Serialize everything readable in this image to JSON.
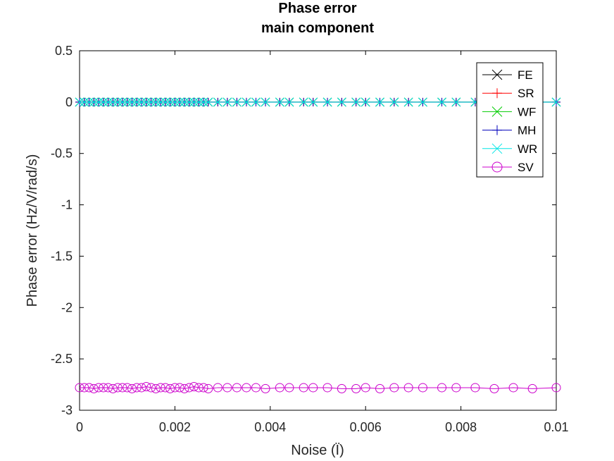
{
  "chart_data": {
    "type": "line",
    "title_lines": [
      "Phase error",
      "main component"
    ],
    "xlabel": "Noise (Ϊ)",
    "ylabel": "Phase error (Hz/V/rad/s)",
    "xlim": [
      0,
      0.01
    ],
    "ylim": [
      -3,
      0.5
    ],
    "x_ticks": [
      0,
      0.002,
      0.004,
      0.006,
      0.008,
      0.01
    ],
    "x_tick_labels": [
      "0",
      "0.002",
      "0.004",
      "0.006",
      "0.008",
      "0.01"
    ],
    "y_ticks": [
      0.5,
      0,
      -0.5,
      -1,
      -1.5,
      -2,
      -2.5,
      -3
    ],
    "y_tick_labels": [
      "0.5",
      "0",
      "-0.5",
      "-1",
      "-1.5",
      "-2",
      "-2.5",
      "-3"
    ],
    "grid": false,
    "legend_position": "top-right",
    "x": [
      0,
      0.0001,
      0.0002,
      0.0003,
      0.0004,
      0.0005,
      0.0006,
      0.0007,
      0.0008,
      0.0009,
      0.001,
      0.0011,
      0.0012,
      0.0013,
      0.0014,
      0.0015,
      0.0016,
      0.0017,
      0.0018,
      0.0019,
      0.002,
      0.0021,
      0.0022,
      0.0023,
      0.0024,
      0.0025,
      0.0026,
      0.0027,
      0.0029,
      0.0031,
      0.0033,
      0.0035,
      0.0037,
      0.0039,
      0.0042,
      0.0044,
      0.0047,
      0.0049,
      0.0052,
      0.0055,
      0.0058,
      0.006,
      0.0063,
      0.0066,
      0.0069,
      0.0072,
      0.0076,
      0.0079,
      0.0083,
      0.0087,
      0.0091,
      0.0095,
      0.01
    ],
    "series": [
      {
        "name": "FE",
        "color": "#000000",
        "marker": "x",
        "values": "zeros"
      },
      {
        "name": "SR",
        "color": "#ff0000",
        "marker": "+",
        "values": "zeros"
      },
      {
        "name": "WF",
        "color": "#00cc00",
        "marker": "x",
        "values": "zeros"
      },
      {
        "name": "MH",
        "color": "#0000bb",
        "marker": "+",
        "values": "zeros"
      },
      {
        "name": "WR",
        "color": "#00e5e5",
        "marker": "x",
        "values": "zeros"
      },
      {
        "name": "SV",
        "color": "#cc00cc",
        "marker": "o",
        "values": [
          -2.78,
          -2.78,
          -2.78,
          -2.79,
          -2.78,
          -2.78,
          -2.78,
          -2.79,
          -2.78,
          -2.78,
          -2.78,
          -2.79,
          -2.78,
          -2.78,
          -2.77,
          -2.78,
          -2.79,
          -2.78,
          -2.78,
          -2.79,
          -2.78,
          -2.78,
          -2.79,
          -2.78,
          -2.77,
          -2.78,
          -2.78,
          -2.79,
          -2.78,
          -2.78,
          -2.78,
          -2.78,
          -2.78,
          -2.79,
          -2.78,
          -2.78,
          -2.78,
          -2.78,
          -2.78,
          -2.79,
          -2.79,
          -2.78,
          -2.79,
          -2.78,
          -2.78,
          -2.78,
          -2.78,
          -2.78,
          -2.78,
          -2.79,
          -2.78,
          -2.79,
          -2.78
        ]
      }
    ]
  }
}
